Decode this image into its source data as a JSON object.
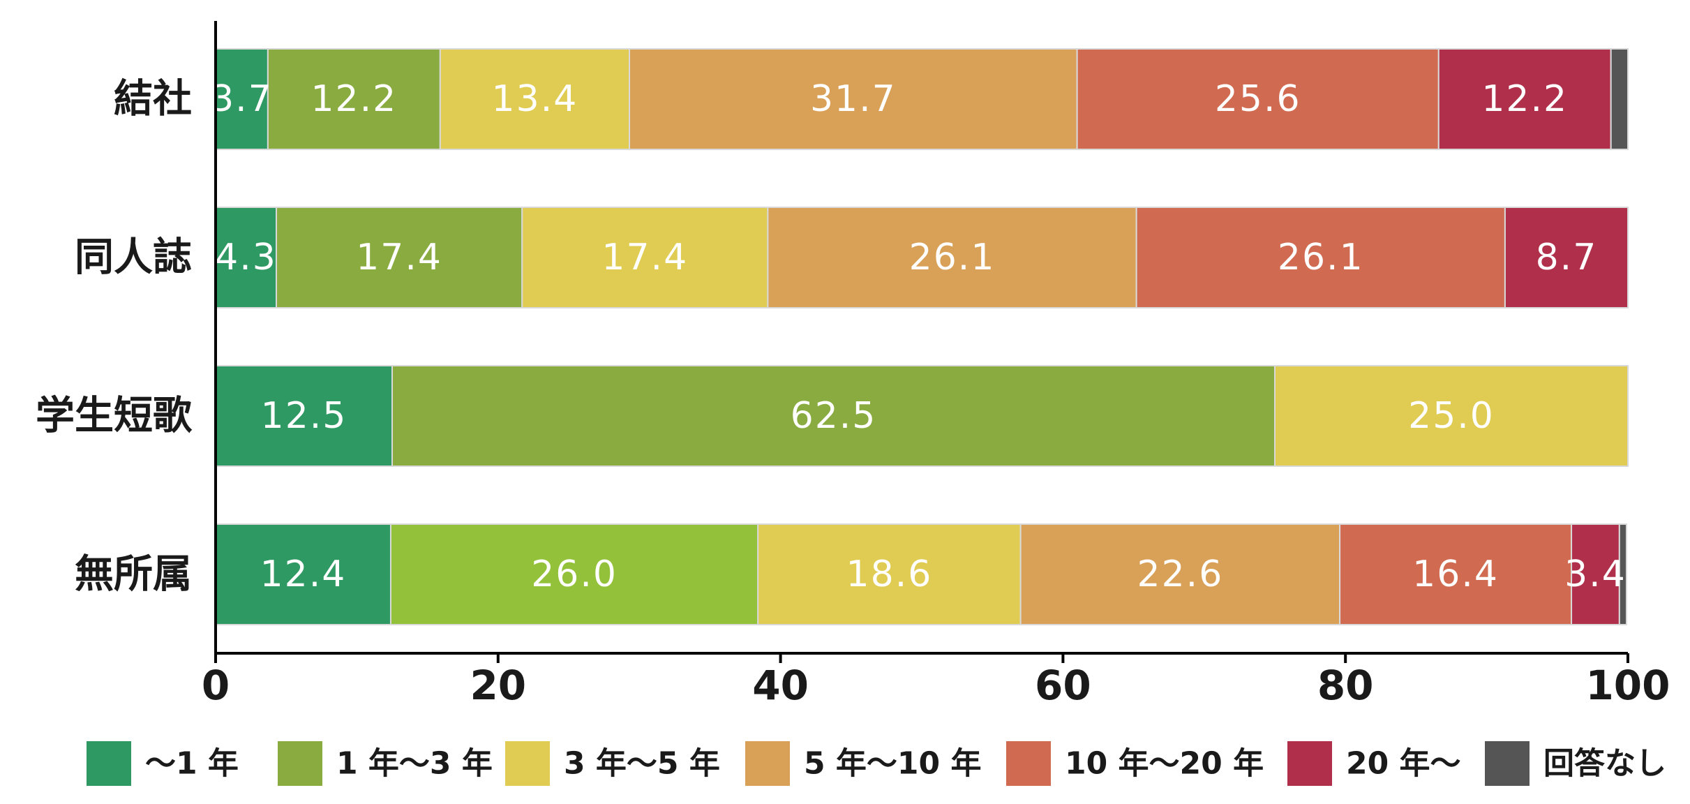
{
  "chart_data": {
    "type": "bar",
    "orientation": "horizontal",
    "stacked": true,
    "categories": [
      "結社",
      "同人誌",
      "学生短歌",
      "無所属"
    ],
    "series": [
      {
        "name": "〜1 年",
        "color": "#2e9963",
        "values": [
          3.7,
          4.3,
          12.5,
          12.4
        ]
      },
      {
        "name": "1 年〜3 年",
        "color": "#8aab40",
        "values": [
          12.2,
          17.4,
          62.5,
          26.0
        ]
      },
      {
        "name": "3 年〜5 年",
        "color": "#e0cc52",
        "values": [
          13.4,
          17.4,
          25.0,
          18.6
        ]
      },
      {
        "name": "5 年〜10 年",
        "color": "#d9a057",
        "values": [
          31.7,
          26.1,
          0,
          22.6
        ]
      },
      {
        "name": "10 年〜20 年",
        "color": "#d06a50",
        "values": [
          25.6,
          26.1,
          0,
          16.4
        ]
      },
      {
        "name": "20 年〜",
        "color": "#b0304c",
        "values": [
          12.2,
          8.7,
          0,
          3.4
        ]
      },
      {
        "name": "回答なし",
        "color": "#555555",
        "values": [
          1.2,
          0,
          0,
          0.5
        ]
      }
    ],
    "data_labels": [
      [
        "3.7",
        "12.2",
        "13.4",
        "31.7",
        "25.6",
        "12.2",
        ""
      ],
      [
        "4.3",
        "17.4",
        "17.4",
        "26.1",
        "26.1",
        "8.7",
        ""
      ],
      [
        "12.5",
        "62.5",
        "25.0",
        "",
        "",
        "",
        ""
      ],
      [
        "12.4",
        "26.0",
        "18.6",
        "22.6",
        "16.4",
        "3.4",
        ""
      ]
    ],
    "bar_color_overrides": {
      "3": {
        "1": "#93c23a"
      }
    },
    "xlim": [
      0,
      100
    ],
    "xticks": [
      "0",
      "20",
      "40",
      "60",
      "80",
      "100"
    ],
    "xlabel": "",
    "ylabel": "",
    "title": "",
    "grid": false,
    "legend_position": "bottom"
  }
}
